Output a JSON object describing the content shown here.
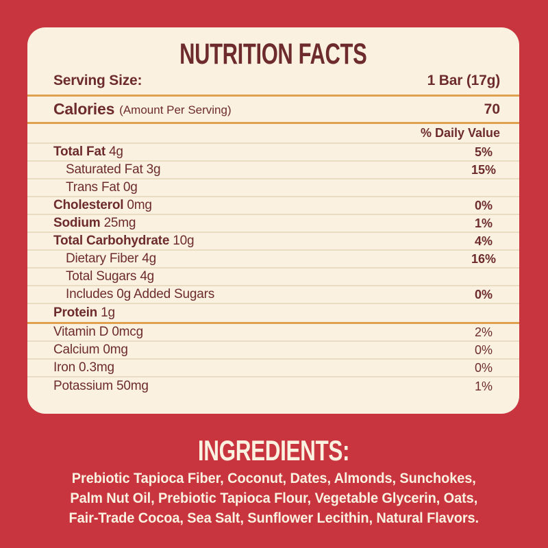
{
  "colors": {
    "background_red": "#C8353E",
    "panel_cream": "#FAF1E1",
    "text_maroon": "#6D2B2E",
    "divider_orange": "#DFA14E",
    "divider_thin_tan": "#E9DCC3"
  },
  "panel": {
    "title": "NUTRITION FACTS",
    "serving": {
      "label": "Serving Size:",
      "value": "1 Bar (17g)"
    },
    "calories": {
      "label": "Calories",
      "sublabel": "(Amount Per Serving)",
      "value": "70"
    },
    "daily_value_header": "% Daily Value",
    "rows": [
      {
        "name": "Total Fat",
        "amount": "4g",
        "dv": "5%"
      },
      {
        "name": "Saturated Fat",
        "amount": "3g",
        "dv": "15%"
      },
      {
        "name": "Trans Fat",
        "amount": "0g",
        "dv": ""
      },
      {
        "name": "Cholesterol",
        "amount": "0mg",
        "dv": "0%"
      },
      {
        "name": "Sodium",
        "amount": "25mg",
        "dv": "1%"
      },
      {
        "name": "Total Carbohydrate",
        "amount": "10g",
        "dv": "4%"
      },
      {
        "name": "Dietary Fiber",
        "amount": "4g",
        "dv": "16%"
      },
      {
        "name": "Total Sugars",
        "amount": "4g",
        "dv": ""
      },
      {
        "name": "Includes 0g Added Sugars",
        "amount": "",
        "dv": "0%"
      },
      {
        "name": "Protein",
        "amount": "1g",
        "dv": ""
      }
    ],
    "micronutrients": [
      {
        "name": "Vitamin D",
        "amount": "0mcg",
        "dv": "2%"
      },
      {
        "name": "Calcium",
        "amount": "0mg",
        "dv": "0%"
      },
      {
        "name": "Iron",
        "amount": "0.3mg",
        "dv": "0%"
      },
      {
        "name": "Potassium",
        "amount": "50mg",
        "dv": "1%"
      }
    ]
  },
  "ingredients": {
    "title": "INGREDIENTS:",
    "lines": [
      "Prebiotic Tapioca Fiber, Coconut, Dates, Almonds, Sunchokes,",
      "Palm Nut Oil, Prebiotic Tapioca Flour, Vegetable Glycerin, Oats,",
      "Fair-Trade Cocoa, Sea Salt, Sunflower Lecithin, Natural Flavors."
    ]
  }
}
